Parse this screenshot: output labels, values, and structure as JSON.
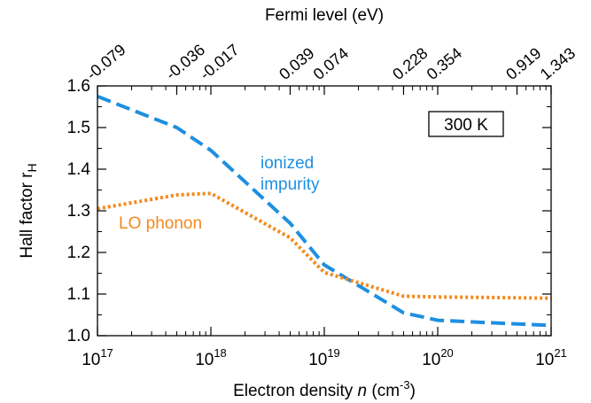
{
  "chart_data": {
    "type": "line",
    "top_axis_label": "Fermi level (eV)",
    "top_ticks": [
      {
        "n_exp": 17.0,
        "label": "-0.079"
      },
      {
        "n_exp": 17.699,
        "label": "-0.036"
      },
      {
        "n_exp": 18.0,
        "label": "-0.017"
      },
      {
        "n_exp": 18.699,
        "label": "0.039"
      },
      {
        "n_exp": 19.0,
        "label": "0.074"
      },
      {
        "n_exp": 19.699,
        "label": "0.228"
      },
      {
        "n_exp": 20.0,
        "label": "0.354"
      },
      {
        "n_exp": 20.699,
        "label": "0.919"
      },
      {
        "n_exp": 21.0,
        "label": "1.343"
      }
    ],
    "xlabel": {
      "prefix": "Electron density ",
      "var": "n",
      "unit_open": " (cm",
      "unit_sup": "-3",
      "unit_close": ")"
    },
    "ylabel": {
      "main": "Hall factor r",
      "sub": "H"
    },
    "x_scale": "log",
    "xlim": [
      1e+17,
      1e+21
    ],
    "ylim": [
      1.0,
      1.6
    ],
    "x_ticks": [
      {
        "base": "10",
        "exp": "17",
        "value_exp": 17
      },
      {
        "base": "10",
        "exp": "18",
        "value_exp": 18
      },
      {
        "base": "10",
        "exp": "19",
        "value_exp": 19
      },
      {
        "base": "10",
        "exp": "20",
        "value_exp": 20
      },
      {
        "base": "10",
        "exp": "21",
        "value_exp": 21
      }
    ],
    "y_ticks": [
      {
        "value": 1.0,
        "label": "1.0"
      },
      {
        "value": 1.1,
        "label": "1.1"
      },
      {
        "value": 1.2,
        "label": "1.2"
      },
      {
        "value": 1.3,
        "label": "1.3"
      },
      {
        "value": 1.4,
        "label": "1.4"
      },
      {
        "value": 1.5,
        "label": "1.5"
      },
      {
        "value": 1.6,
        "label": "1.6"
      }
    ],
    "temperature_box": "300 K",
    "series": [
      {
        "name": "ionized impurity",
        "name_lines": [
          "ionized",
          "impurity"
        ],
        "color": "#1e8fe0",
        "style": "dashed",
        "x": [
          1e+17,
          5e+17,
          1e+18,
          5e+18,
          1e+19,
          5e+19,
          1e+20,
          5e+20,
          1e+21
        ],
        "y": [
          1.575,
          1.5,
          1.445,
          1.27,
          1.17,
          1.055,
          1.037,
          1.028,
          1.025
        ]
      },
      {
        "name": "LO phonon",
        "name_lines": [
          "LO phonon"
        ],
        "color": "#f28a1e",
        "style": "dotted",
        "x": [
          1e+17,
          5e+17,
          1e+18,
          5e+18,
          1e+19,
          5e+19,
          1e+20,
          5e+20,
          1e+21
        ],
        "y": [
          1.305,
          1.338,
          1.342,
          1.235,
          1.152,
          1.095,
          1.093,
          1.091,
          1.09
        ]
      }
    ]
  }
}
